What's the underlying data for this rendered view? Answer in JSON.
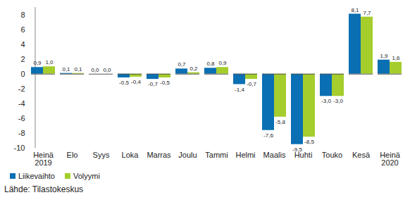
{
  "chart_data": {
    "type": "bar",
    "categories": [
      "Heinä\n2019",
      "Elo",
      "Syys",
      "Loka",
      "Marras",
      "Joulu",
      "Tammi",
      "Helmi",
      "Maalis",
      "Huhti",
      "Touko",
      "Kesä",
      "Heinä\n2020"
    ],
    "series": [
      {
        "name": "Liikevaihto",
        "color": "#0a6fb3",
        "values": [
          0.9,
          0.1,
          0.0,
          -0.5,
          -0.7,
          0.7,
          0.8,
          -1.4,
          -7.6,
          -9.5,
          -3.0,
          8.1,
          1.9
        ],
        "value_labels": [
          "0,9",
          "0,1",
          "0,0",
          "-0,5",
          "-0,7",
          "0,7",
          "0,8",
          "-1,4",
          "-7,6",
          "-9,5",
          "-3,0",
          "8,1",
          "1,9"
        ]
      },
      {
        "name": "Volyymi",
        "color": "#a5cd2c",
        "values": [
          1.0,
          0.1,
          0.0,
          -0.4,
          -0.5,
          0.2,
          0.9,
          -0.7,
          -5.8,
          -8.5,
          -3.0,
          7.7,
          1.6
        ],
        "value_labels": [
          "1,0",
          "0,1",
          "0,0",
          "-0,4",
          "-0,5",
          "0,2",
          "0,9",
          "-0,7",
          "-5,8",
          "-8,5",
          "-3,0",
          "7,7",
          "1,6"
        ]
      }
    ],
    "ylim": [
      -10,
      9
    ],
    "yticks": [
      -10,
      -8,
      -6,
      -4,
      -2,
      0,
      2,
      4,
      6,
      8
    ],
    "grid": false,
    "data_labels": true,
    "legend": "bottom-left",
    "caption": "Lähde: Tilastokeskus"
  }
}
